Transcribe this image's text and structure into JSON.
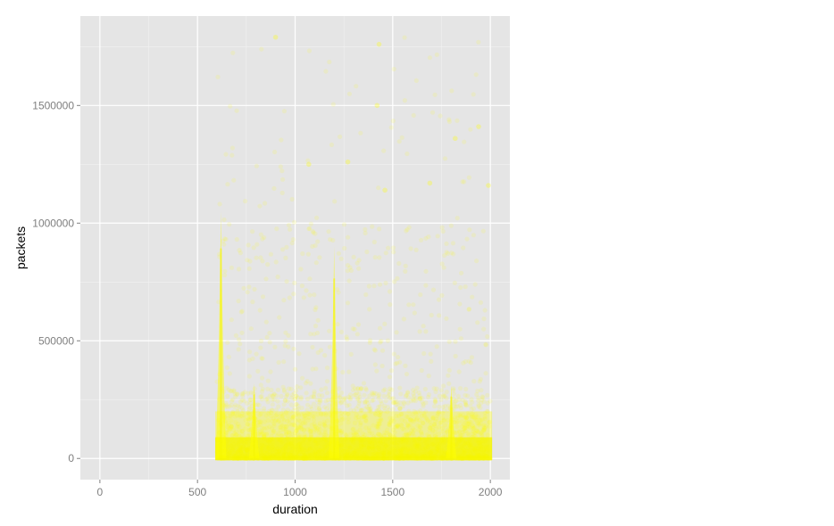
{
  "chart_data": {
    "type": "scatter",
    "title": "",
    "xlabel": "duration",
    "ylabel": "packets",
    "xlim": [
      -100,
      2100
    ],
    "ylim": [
      -90000,
      1880000
    ],
    "x_ticks": [
      0,
      500,
      1000,
      1500,
      2000
    ],
    "x_tick_labels": [
      "0",
      "500",
      "1000",
      "1500",
      "2000"
    ],
    "y_ticks": [
      0,
      500000,
      1000000,
      1500000
    ],
    "y_tick_labels": [
      "0",
      "500000",
      "1000000",
      "1500000"
    ],
    "grid": true,
    "legend": "none",
    "colors": {
      "panel": "#e5e5e5",
      "grid_major": "#ffffff",
      "grid_minor": "#f2f2f2",
      "point": "#ffff00",
      "point_dense": "#f5f500"
    },
    "point_alpha": 0.12,
    "x_range_of_points": [
      600,
      2000
    ],
    "spikes": [
      {
        "x": 620,
        "y_top": 1050000
      },
      {
        "x": 790,
        "y_top": 320000
      },
      {
        "x": 1200,
        "y_top": 900000
      },
      {
        "x": 1800,
        "y_top": 310000
      }
    ],
    "sample_points": [
      {
        "x": 900,
        "y": 1790000
      },
      {
        "x": 1430,
        "y": 1760000
      },
      {
        "x": 1420,
        "y": 1500000
      },
      {
        "x": 1940,
        "y": 1410000
      },
      {
        "x": 1270,
        "y": 1260000
      },
      {
        "x": 1990,
        "y": 1160000
      },
      {
        "x": 1070,
        "y": 1250000
      },
      {
        "x": 1460,
        "y": 1140000
      },
      {
        "x": 1690,
        "y": 1170000
      },
      {
        "x": 1820,
        "y": 1360000
      }
    ]
  }
}
